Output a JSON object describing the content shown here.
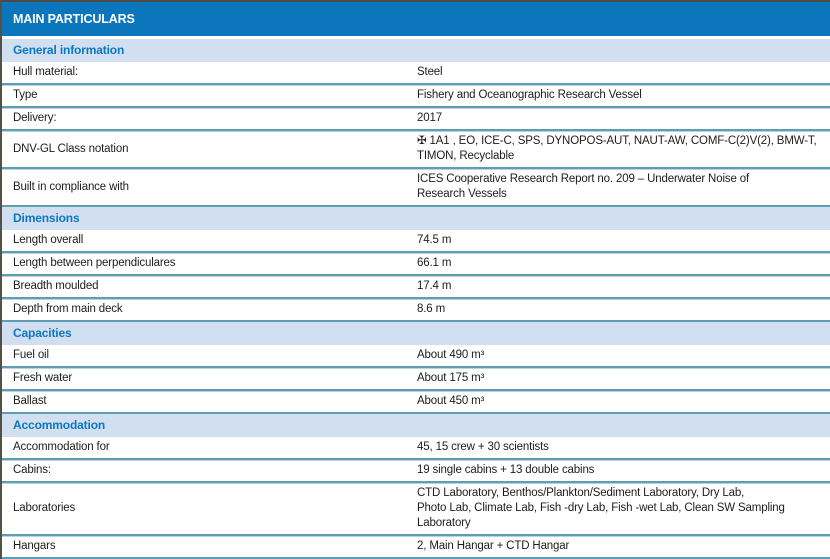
{
  "title": "MAIN PARTICULARS",
  "colors": {
    "header_bg": "#0b76bc",
    "header_text": "#ffffff",
    "section_bg": "#d2dff0",
    "section_text": "#0a78c0",
    "divider": "#5e9db4",
    "body_text": "#1d1d1b"
  },
  "sections": [
    {
      "title": "General information",
      "rows": [
        {
          "label": "Hull material:",
          "value": "Steel"
        },
        {
          "label": "Type",
          "value": "Fishery and Oceanographic Research Vessel"
        },
        {
          "label": "Delivery:",
          "value": "2017"
        },
        {
          "label": "DNV-GL Class notation",
          "value": "✠ 1A1 , EO, ICE-C, SPS, DYNOPOS-AUT, NAUT-AW, COMF-C(2)V(2), BMW-T,\nTIMON, Recyclable"
        },
        {
          "label": "Built in compliance with",
          "value": "ICES Cooperative Research Report no. 209 – Underwater Noise of\nResearch Vessels"
        }
      ]
    },
    {
      "title": "Dimensions",
      "rows": [
        {
          "label": "Length overall",
          "value": "74.5 m"
        },
        {
          "label": "Length between perpendiculares",
          "value": "66.1 m"
        },
        {
          "label": "Breadth moulded",
          "value": "17.4 m"
        },
        {
          "label": "Depth from main deck",
          "value": "8.6 m"
        }
      ]
    },
    {
      "title": "Capacities",
      "rows": [
        {
          "label": "Fuel oil",
          "value": "About 490 m³"
        },
        {
          "label": "Fresh water",
          "value": "About 175 m³"
        },
        {
          "label": "Ballast",
          "value": "About 450 m³"
        }
      ]
    },
    {
      "title": "Accommodation",
      "rows": [
        {
          "label": "Accommodation for",
          "value": "45, 15 crew + 30 scientists"
        },
        {
          "label": "Cabins:",
          "value": "19 single cabins + 13 double cabins"
        },
        {
          "label": "Laboratories",
          "value": "CTD Laboratory, Benthos/Plankton/Sediment Laboratory, Dry Lab,\nPhoto Lab, Climate Lab, Fish -dry Lab, Fish -wet Lab, Clean SW Sampling\nLaboratory"
        },
        {
          "label": "Hangars",
          "value": "2, Main Hangar + CTD Hangar"
        }
      ]
    }
  ]
}
